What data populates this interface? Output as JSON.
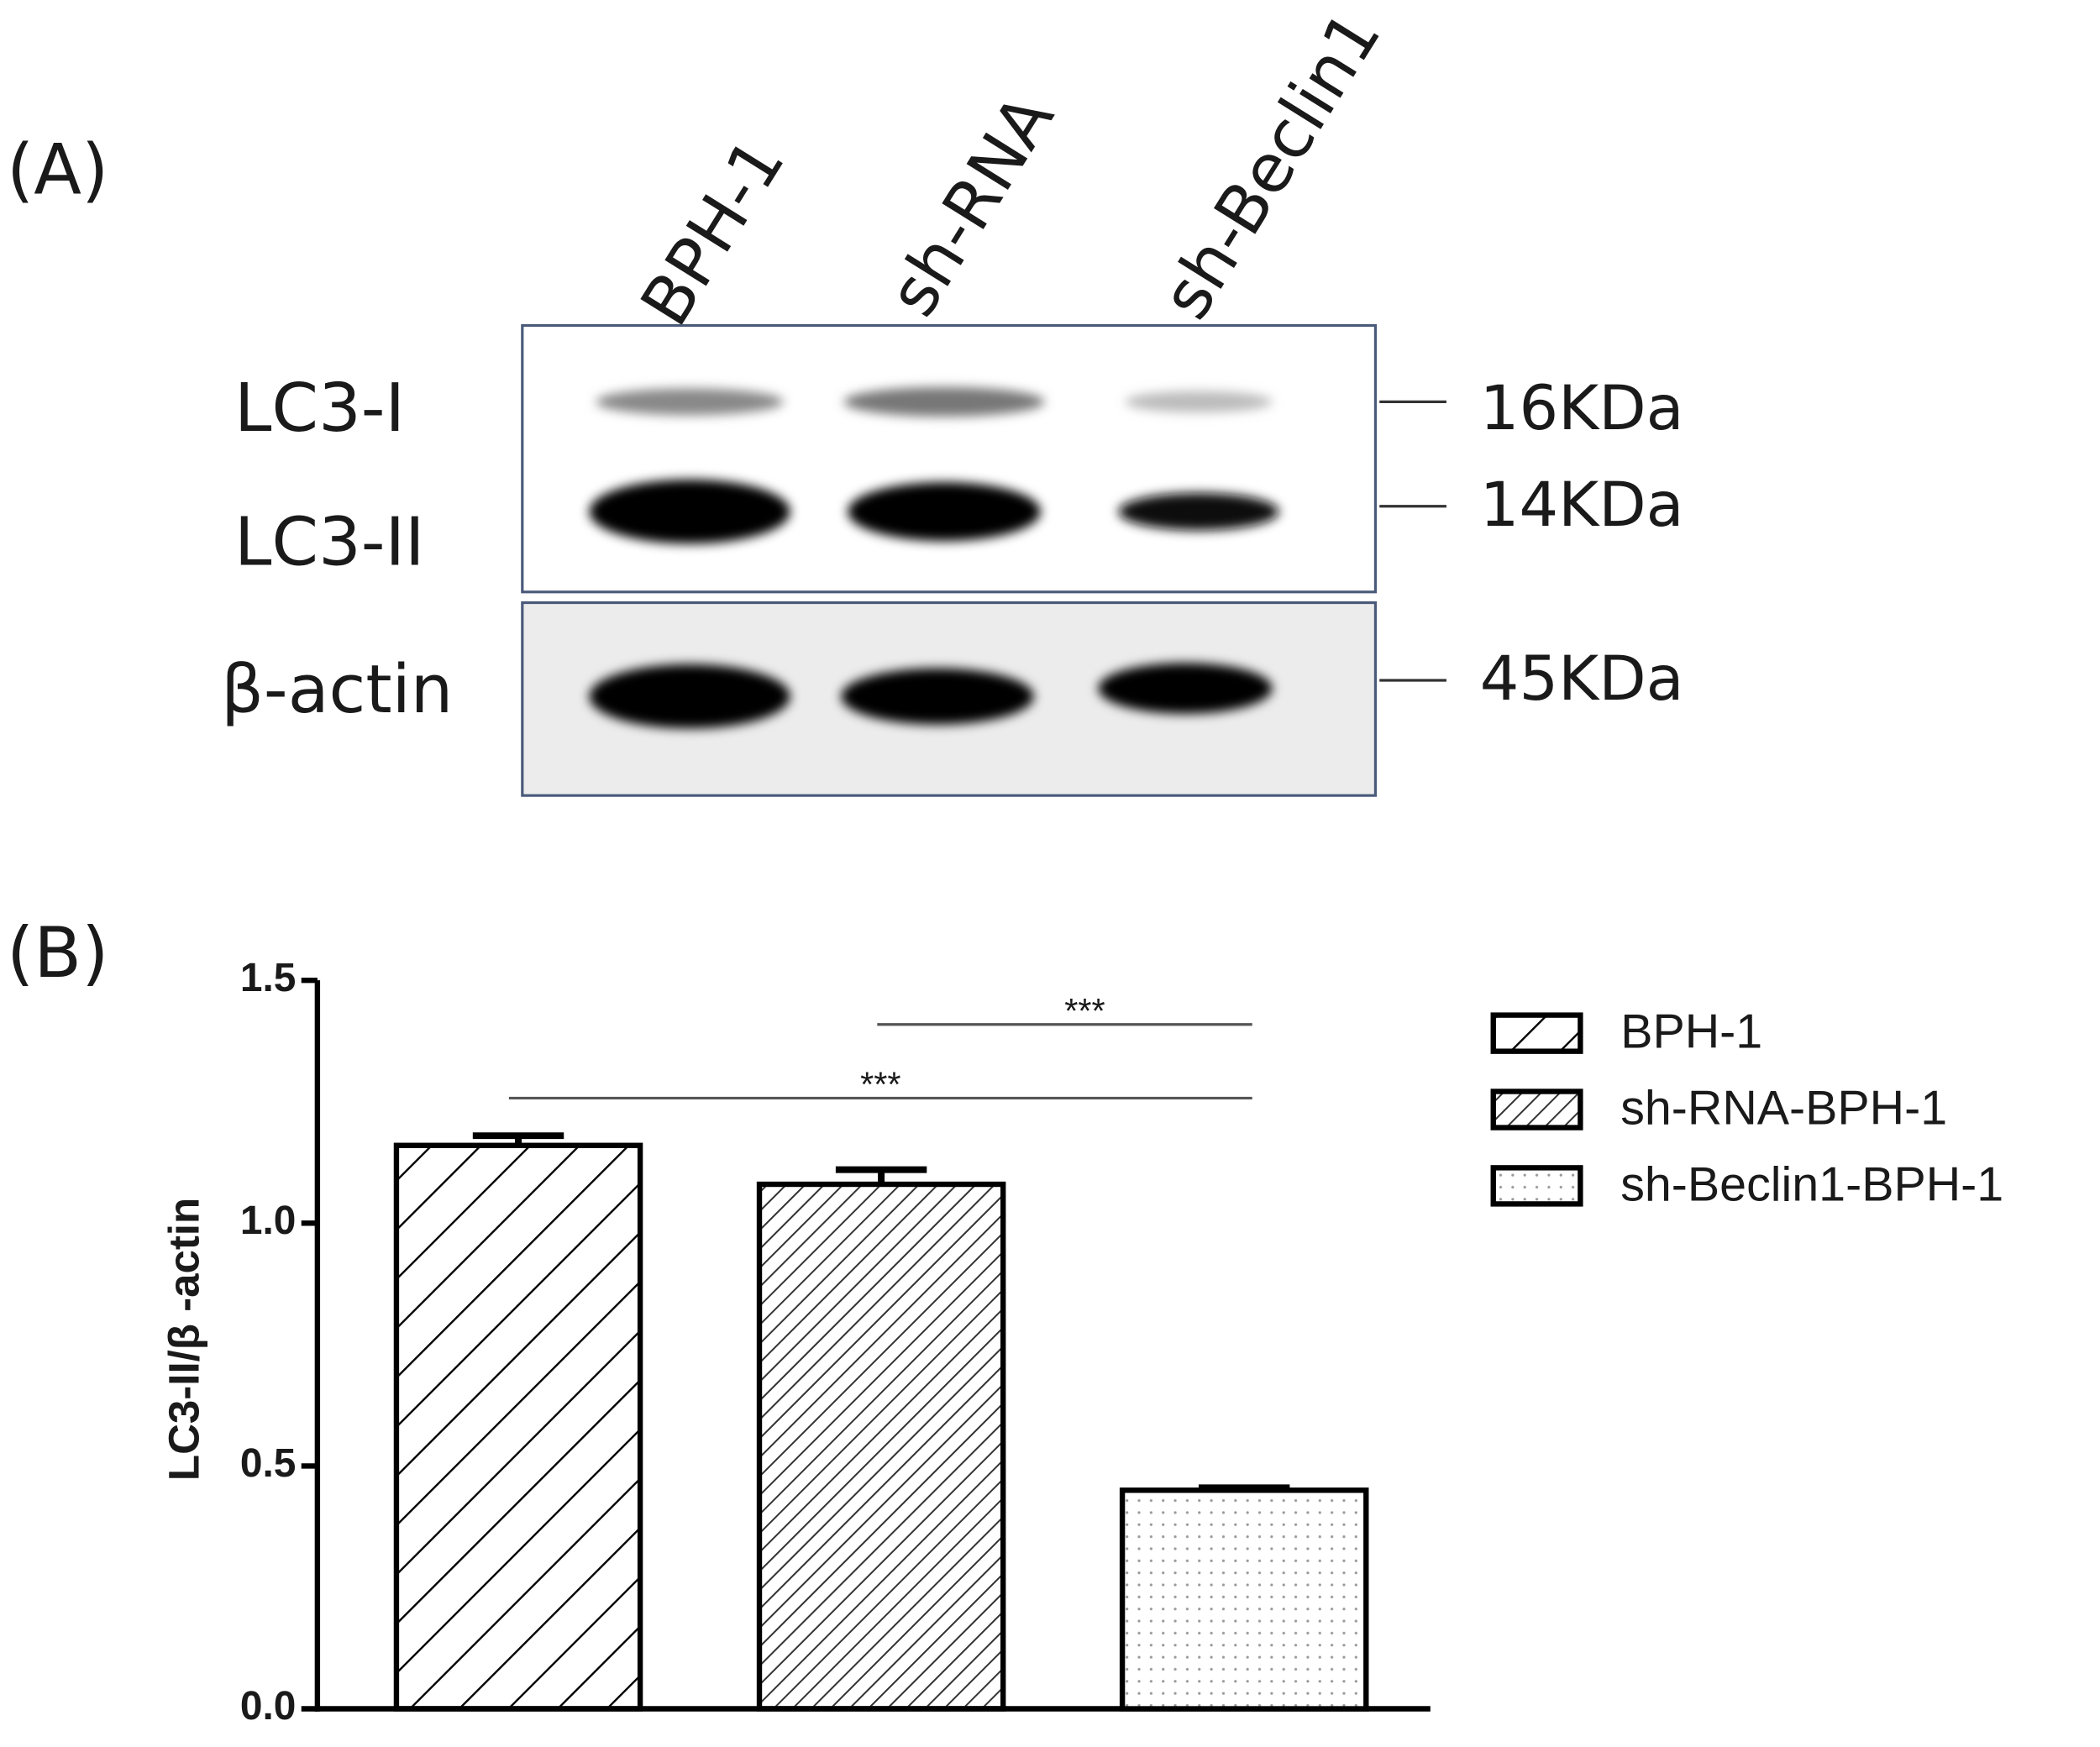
{
  "panel_a": {
    "label": "(A)",
    "lanes": [
      "BPH-1",
      "sh-RNA",
      "sh-Beclin1"
    ],
    "rows": [
      "LC3-I",
      "LC3-II",
      "β-actin"
    ],
    "markers": [
      "16KDa",
      "14KDa",
      "45KDa"
    ]
  },
  "chart_data": {
    "type": "bar",
    "panel_label": "(B)",
    "y_label": "LC3-II/β -actin",
    "ylim": [
      0,
      1.5
    ],
    "yticks": [
      {
        "value": 0,
        "label": "0.0"
      },
      0.5,
      {
        "value": 1,
        "label": "1.0"
      },
      1.5
    ],
    "series": [
      {
        "name": "BPH-1",
        "color": "#000000",
        "pattern": "wide-hatch",
        "values": [
          1.16
        ],
        "errors": [
          0.02
        ]
      },
      {
        "name": "sh-RNA-BPH-1",
        "color": "#000000",
        "pattern": "dense-hatch",
        "values": [
          1.08
        ],
        "errors": [
          0.03
        ]
      },
      {
        "name": "sh-Beclin1-BPH-1",
        "color": "#000000",
        "pattern": "dots",
        "values": [
          0.45
        ],
        "errors": [
          0.005
        ]
      }
    ],
    "annotations": [
      "***",
      "***"
    ],
    "legend": "right"
  }
}
